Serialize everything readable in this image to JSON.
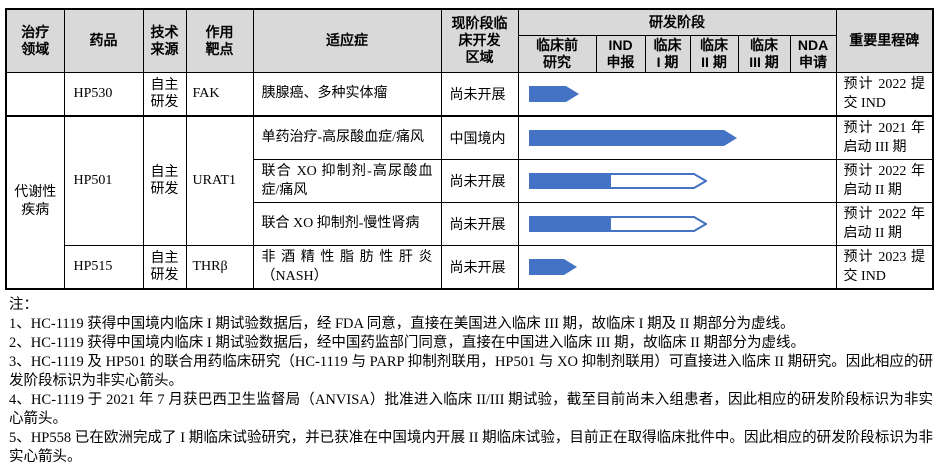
{
  "colors": {
    "arrow_blue": "#4472C4",
    "header_bg": "#D9D9D9",
    "border": "#000000"
  },
  "table": {
    "headers": {
      "therapy_area": "治疗\n领域",
      "drug": "药品",
      "tech_source": "技术\n来源",
      "target": "作用\n靶点",
      "indication": "适应症",
      "region": "现阶段临\n床开发\n区域",
      "stage_group": "研发阶段",
      "stages": [
        "临床前\n研究",
        "IND\n申报",
        "临床\nI 期",
        "临床\nII 期",
        "临床\nIII 期",
        "NDA\n申请"
      ],
      "milestone": "重要里程碑"
    },
    "rows": [
      {
        "therapy_area": "",
        "drug": "HP530",
        "tech_source": "自主\n研发",
        "target": "FAK",
        "indication": "胰腺癌、多种实体瘤",
        "region": "尚未开展",
        "milestone": "预计 2022 提交 IND",
        "arrow": {
          "type": "solid",
          "start": 10,
          "solid_width": 50,
          "total_width": 50
        }
      },
      {
        "therapy_area": "代谢性\n疾病",
        "drug": "HP501",
        "tech_source": "自主\n研发",
        "target": "URAT1",
        "indication": "单药治疗-高尿酸血症/痛风",
        "region": "中国境内",
        "milestone": "预计 2021 年启动 III 期",
        "arrow": {
          "type": "solid",
          "start": 10,
          "solid_width": 208,
          "total_width": 208
        }
      },
      {
        "indication": "联合 XO 抑制剂-高尿酸血症/痛风",
        "region": "尚未开展",
        "milestone": "预计 2022 年启动 II 期",
        "arrow": {
          "type": "partial",
          "start": 10,
          "solid_width": 81,
          "total_width": 178
        }
      },
      {
        "indication": "联合 XO 抑制剂-慢性肾病",
        "region": "尚未开展",
        "milestone": "预计 2022 年启动 II 期",
        "arrow": {
          "type": "partial",
          "start": 10,
          "solid_width": 81,
          "total_width": 178
        }
      },
      {
        "drug": "HP515",
        "tech_source": "自主\n研发",
        "target": "THRβ",
        "indication": "非酒精性脂肪性肝炎（NASH）",
        "region": "尚未开展",
        "milestone": "预计 2023 提交 IND",
        "arrow": {
          "type": "solid",
          "start": 10,
          "solid_width": 48,
          "total_width": 48
        }
      }
    ]
  },
  "notes": {
    "label": "注：",
    "items": [
      "1、HC-1119 获得中国境内临床 I 期试验数据后，经 FDA 同意，直接在美国进入临床 III 期，故临床 I 期及 II 期部分为虚线。",
      "2、HC-1119 获得中国境内临床 I 期试验数据后，经中国药监部门同意，直接在中国进入临床 III 期，故临床 II 期部分为虚线。",
      "3、HC-1119 及 HP501 的联合用药临床研究（HC-1119 与 PARP 抑制剂联用，HP501 与 XO 抑制剂联用）可直接进入临床 II 期研究。因此相应的研发阶段标识为非实心箭头。",
      "4、HC-1119 于 2021 年 7 月获巴西卫生监督局（ANVISA）批准进入临床 II/III 期试验，截至目前尚未入组患者，因此相应的研发阶段标识为非实心箭头。",
      "5、HP558 已在欧洲完成了 I 期临床试验研究，并已获准在中国境内开展 II 期临床试验，目前正在取得临床批件中。因此相应的研发阶段标识为非实心箭头。"
    ]
  }
}
